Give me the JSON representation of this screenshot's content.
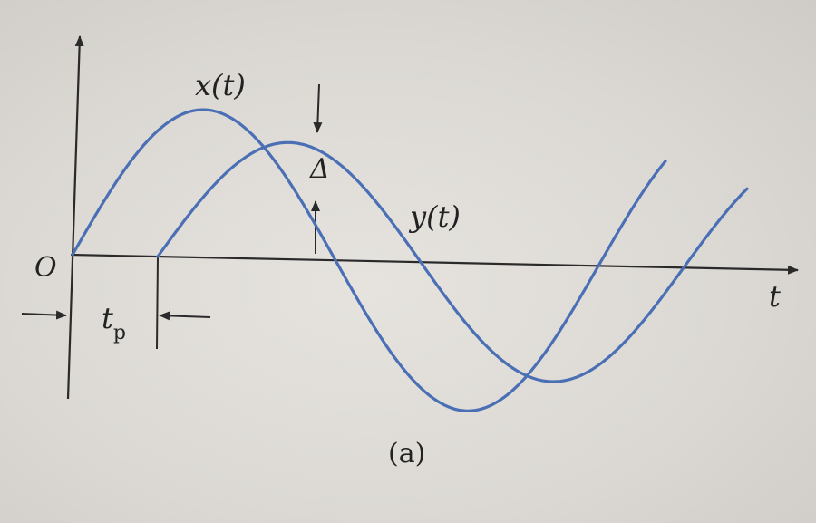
{
  "labels": {
    "origin": "O",
    "x_curve": "x(t)",
    "y_curve": "y(t)",
    "delta": "Δ",
    "time_axis": "t",
    "tp": "t",
    "tp_sub": "p",
    "caption": "(a)"
  },
  "colors": {
    "curve": "#4a6fb5",
    "axis": "#2a2a2a",
    "background": "#dcd9d4"
  },
  "curves": {
    "x_amplitude": 1.0,
    "y_amplitude": 0.79,
    "y_delay_tp": 1
  }
}
